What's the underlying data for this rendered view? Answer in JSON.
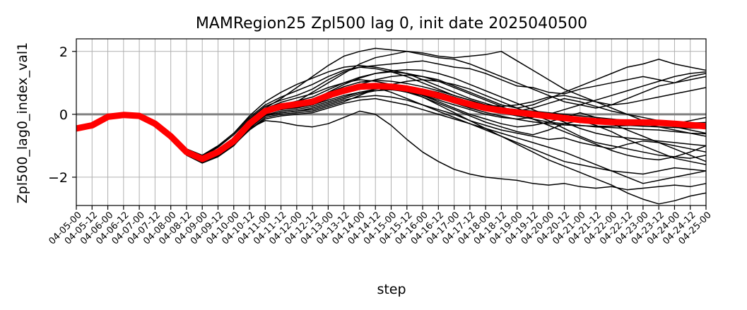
{
  "chart_data": {
    "type": "line",
    "title": "MAMRegion25 Zpl500 lag 0, init date 2025040500",
    "xlabel": "step",
    "ylabel": "Zpl500_lag0_index_val1",
    "ylim": [
      -2.9,
      2.4
    ],
    "yticks": [
      -2,
      0,
      2
    ],
    "yticklabels": [
      "−2",
      "0",
      "2"
    ],
    "grid": true,
    "x": [
      "04-05-00",
      "04-05-12",
      "04-06-00",
      "04-06-12",
      "04-07-00",
      "04-07-12",
      "04-08-00",
      "04-08-12",
      "04-09-00",
      "04-09-12",
      "04-10-00",
      "04-10-12",
      "04-11-00",
      "04-11-12",
      "04-12-00",
      "04-12-12",
      "04-13-00",
      "04-13-12",
      "04-14-00",
      "04-14-12",
      "04-15-00",
      "04-15-12",
      "04-16-00",
      "04-16-12",
      "04-17-00",
      "04-17-12",
      "04-18-00",
      "04-18-12",
      "04-19-00",
      "04-19-12",
      "04-20-00",
      "04-20-12",
      "04-21-00",
      "04-21-12",
      "04-22-00",
      "04-22-12",
      "04-23-00",
      "04-23-12",
      "04-24-00",
      "04-24-12",
      "04-25-00"
    ],
    "reference_line": {
      "y": 0,
      "color": "#808080"
    },
    "ensemble_color": "#000000",
    "mean_color": "#ff0000",
    "mean": [
      -0.45,
      -0.35,
      -0.08,
      -0.02,
      -0.05,
      -0.3,
      -0.7,
      -1.2,
      -1.42,
      -1.2,
      -0.85,
      -0.3,
      0.1,
      0.25,
      0.32,
      0.4,
      0.6,
      0.75,
      0.88,
      0.9,
      0.88,
      0.82,
      0.72,
      0.6,
      0.45,
      0.32,
      0.2,
      0.12,
      0.06,
      0.0,
      -0.06,
      -0.12,
      -0.18,
      -0.22,
      -0.25,
      -0.26,
      -0.26,
      -0.27,
      -0.3,
      -0.34,
      -0.38
    ],
    "members": [
      [
        -0.38,
        -0.3,
        -0.05,
        0.02,
        0.0,
        -0.25,
        -0.65,
        -1.15,
        -1.35,
        -1.05,
        -0.65,
        -0.15,
        0.25,
        0.45,
        0.6,
        0.8,
        1.1,
        1.35,
        1.5,
        1.55,
        1.6,
        1.65,
        1.7,
        1.6,
        1.5,
        1.45,
        1.3,
        1.1,
        0.9,
        0.85,
        0.7,
        0.65,
        0.8,
        0.9,
        1.0,
        1.1,
        1.2,
        1.1,
        1.0,
        1.1,
        1.2
      ],
      [
        -0.45,
        -0.35,
        -0.1,
        -0.05,
        -0.08,
        -0.35,
        -0.75,
        -1.3,
        -1.55,
        -1.35,
        -1.0,
        -0.45,
        -0.05,
        0.05,
        0.1,
        0.15,
        0.3,
        0.45,
        0.55,
        0.6,
        0.55,
        0.45,
        0.3,
        0.15,
        0.0,
        -0.2,
        -0.35,
        -0.5,
        -0.6,
        -0.7,
        -0.8,
        -0.75,
        -0.9,
        -1.0,
        -1.1,
        -0.95,
        -0.85,
        -0.9,
        -1.0,
        -1.1,
        -1.2
      ],
      [
        -0.5,
        -0.4,
        -0.12,
        -0.05,
        -0.05,
        -0.3,
        -0.7,
        -1.25,
        -1.5,
        -1.3,
        -0.95,
        -0.4,
        0.0,
        0.2,
        0.4,
        0.7,
        1.0,
        1.3,
        1.6,
        1.8,
        1.9,
        2.0,
        1.9,
        1.8,
        1.75,
        1.6,
        1.4,
        1.2,
        1.0,
        0.8,
        0.6,
        0.4,
        0.3,
        0.2,
        0.3,
        0.5,
        0.7,
        0.9,
        1.0,
        1.2,
        1.3
      ],
      [
        -0.42,
        -0.32,
        -0.06,
        0.0,
        -0.03,
        -0.28,
        -0.68,
        -1.18,
        -1.4,
        -1.2,
        -0.9,
        -0.45,
        -0.2,
        -0.25,
        -0.35,
        -0.4,
        -0.3,
        -0.1,
        0.1,
        0.0,
        -0.35,
        -0.8,
        -1.2,
        -1.5,
        -1.75,
        -1.9,
        -2.0,
        -2.05,
        -2.1,
        -2.2,
        -2.25,
        -2.2,
        -2.3,
        -2.35,
        -2.3,
        -2.4,
        -2.35,
        -2.3,
        -2.25,
        -2.3,
        -2.2
      ],
      [
        -0.48,
        -0.38,
        -0.1,
        -0.03,
        -0.06,
        -0.32,
        -0.72,
        -1.22,
        -1.45,
        -1.25,
        -0.85,
        -0.25,
        0.2,
        0.5,
        0.85,
        1.2,
        1.55,
        1.85,
        2.0,
        2.1,
        2.05,
        2.0,
        1.95,
        1.85,
        1.8,
        1.85,
        1.9,
        2.0,
        1.7,
        1.4,
        1.1,
        0.8,
        0.6,
        0.4,
        0.2,
        0.0,
        -0.2,
        -0.3,
        -0.4,
        -0.5,
        -0.6
      ],
      [
        -0.4,
        -0.33,
        -0.07,
        0.0,
        -0.02,
        -0.27,
        -0.66,
        -1.16,
        -1.38,
        -1.12,
        -0.75,
        -0.2,
        0.15,
        0.3,
        0.35,
        0.4,
        0.55,
        0.7,
        0.8,
        0.85,
        0.7,
        0.5,
        0.3,
        0.1,
        -0.1,
        -0.3,
        -0.5,
        -0.7,
        -0.9,
        -1.1,
        -1.3,
        -1.5,
        -1.6,
        -1.7,
        -1.8,
        -1.85,
        -1.9,
        -1.8,
        -1.7,
        -1.75,
        -1.8
      ],
      [
        -0.46,
        -0.36,
        -0.09,
        -0.02,
        -0.04,
        -0.31,
        -0.71,
        -1.21,
        -1.44,
        -1.22,
        -0.88,
        -0.35,
        0.05,
        0.15,
        0.2,
        0.3,
        0.5,
        0.7,
        0.95,
        1.1,
        1.2,
        1.25,
        1.2,
        1.1,
        0.9,
        0.7,
        0.5,
        0.3,
        0.2,
        0.3,
        0.5,
        0.7,
        0.9,
        1.1,
        1.3,
        1.5,
        1.6,
        1.75,
        1.6,
        1.5,
        1.4
      ],
      [
        -0.44,
        -0.34,
        -0.08,
        -0.01,
        -0.05,
        -0.29,
        -0.69,
        -1.19,
        -1.41,
        -1.18,
        -0.82,
        -0.28,
        0.1,
        0.22,
        0.28,
        0.3,
        0.45,
        0.6,
        0.7,
        0.75,
        0.8,
        0.7,
        0.55,
        0.35,
        0.15,
        -0.05,
        -0.25,
        -0.4,
        -0.55,
        -0.65,
        -0.5,
        -0.3,
        -0.2,
        -0.35,
        -0.55,
        -0.8,
        -1.0,
        -1.2,
        -1.4,
        -1.5,
        -1.6
      ],
      [
        -0.47,
        -0.37,
        -0.09,
        -0.03,
        -0.06,
        -0.33,
        -0.73,
        -1.23,
        -1.46,
        -1.28,
        -0.95,
        -0.5,
        -0.1,
        0.0,
        0.05,
        0.1,
        0.25,
        0.4,
        0.6,
        0.8,
        0.95,
        1.05,
        1.1,
        1.05,
        0.95,
        0.8,
        0.6,
        0.4,
        0.2,
        0.0,
        -0.2,
        -0.45,
        -0.7,
        -0.9,
        -1.0,
        -1.1,
        -1.2,
        -1.3,
        -1.35,
        -1.4,
        -1.3
      ],
      [
        -0.43,
        -0.34,
        -0.07,
        0.01,
        -0.01,
        -0.26,
        -0.64,
        -1.12,
        -1.32,
        -1.02,
        -0.6,
        -0.05,
        0.4,
        0.7,
        0.95,
        1.15,
        1.35,
        1.5,
        1.55,
        1.5,
        1.4,
        1.3,
        1.1,
        0.9,
        0.7,
        0.5,
        0.35,
        0.2,
        0.1,
        0.2,
        0.35,
        0.5,
        0.4,
        0.25,
        0.1,
        0.0,
        -0.1,
        -0.2,
        -0.3,
        -0.2,
        -0.1
      ],
      [
        -0.49,
        -0.39,
        -0.11,
        -0.04,
        -0.07,
        -0.34,
        -0.74,
        -1.26,
        -1.52,
        -1.32,
        -0.98,
        -0.5,
        -0.15,
        -0.05,
        0.0,
        0.05,
        0.2,
        0.35,
        0.45,
        0.5,
        0.4,
        0.3,
        0.15,
        0.0,
        -0.15,
        -0.3,
        -0.45,
        -0.6,
        -0.75,
        -0.9,
        -1.05,
        -1.2,
        -1.4,
        -1.6,
        -1.8,
        -2.0,
        -2.2,
        -2.1,
        -2.0,
        -1.9,
        -1.8
      ],
      [
        -0.41,
        -0.31,
        -0.06,
        0.02,
        0.01,
        -0.24,
        -0.62,
        -1.1,
        -1.3,
        -1.0,
        -0.6,
        -0.1,
        0.3,
        0.55,
        0.75,
        0.95,
        1.2,
        1.4,
        1.5,
        1.45,
        1.35,
        1.2,
        1.0,
        0.8,
        0.6,
        0.45,
        0.3,
        0.25,
        0.3,
        0.4,
        0.55,
        0.6,
        0.5,
        0.4,
        0.3,
        0.35,
        0.45,
        0.55,
        0.65,
        0.75,
        0.85
      ],
      [
        -0.45,
        -0.36,
        -0.1,
        -0.02,
        -0.04,
        -0.3,
        -0.7,
        -1.2,
        -1.42,
        -1.2,
        -0.86,
        -0.32,
        0.08,
        0.25,
        0.35,
        0.45,
        0.65,
        0.8,
        0.9,
        0.95,
        0.9,
        0.75,
        0.55,
        0.3,
        0.05,
        -0.2,
        -0.45,
        -0.7,
        -0.95,
        -1.2,
        -1.45,
        -1.65,
        -1.85,
        -2.05,
        -2.25,
        -2.5,
        -2.7,
        -2.85,
        -2.75,
        -2.6,
        -2.5
      ],
      [
        -0.44,
        -0.35,
        -0.08,
        -0.01,
        -0.04,
        -0.3,
        -0.7,
        -1.2,
        -1.43,
        -1.22,
        -0.88,
        -0.35,
        0.05,
        0.2,
        0.3,
        0.45,
        0.7,
        0.95,
        1.15,
        1.3,
        1.35,
        1.3,
        1.2,
        1.05,
        0.85,
        0.65,
        0.45,
        0.25,
        0.05,
        -0.15,
        -0.35,
        -0.55,
        -0.75,
        -0.95,
        -1.15,
        -1.3,
        -1.4,
        -1.45,
        -1.35,
        -1.2,
        -1.0
      ],
      [
        -0.46,
        -0.36,
        -0.09,
        -0.02,
        -0.05,
        -0.31,
        -0.71,
        -1.22,
        -1.45,
        -1.24,
        -0.9,
        -0.38,
        0.02,
        0.15,
        0.22,
        0.3,
        0.5,
        0.7,
        0.85,
        0.9,
        0.85,
        0.75,
        0.6,
        0.45,
        0.3,
        0.15,
        0.0,
        -0.1,
        -0.15,
        -0.1,
        0.0,
        0.15,
        0.3,
        0.45,
        0.6,
        0.75,
        0.9,
        1.05,
        1.2,
        1.3,
        1.35
      ],
      [
        -0.43,
        -0.33,
        -0.07,
        0.0,
        -0.02,
        -0.27,
        -0.67,
        -1.17,
        -1.39,
        -1.15,
        -0.78,
        -0.22,
        0.18,
        0.38,
        0.52,
        0.65,
        0.85,
        1.0,
        1.1,
        1.05,
        0.95,
        0.8,
        0.6,
        0.4,
        0.2,
        0.0,
        -0.15,
        -0.3,
        -0.4,
        -0.35,
        -0.25,
        -0.1,
        0.05,
        -0.1,
        -0.3,
        -0.5,
        -0.7,
        -0.9,
        -1.1,
        -1.3,
        -1.5
      ],
      [
        -0.48,
        -0.38,
        -0.1,
        -0.03,
        -0.06,
        -0.32,
        -0.72,
        -1.24,
        -1.48,
        -1.28,
        -0.94,
        -0.42,
        -0.02,
        0.1,
        0.15,
        0.25,
        0.4,
        0.55,
        0.7,
        0.8,
        0.85,
        0.85,
        0.8,
        0.7,
        0.55,
        0.4,
        0.3,
        0.2,
        0.15,
        0.1,
        0.05,
        0.0,
        -0.05,
        -0.1,
        -0.15,
        -0.2,
        -0.3,
        -0.4,
        -0.5,
        -0.6,
        -0.7
      ],
      [
        -0.42,
        -0.33,
        -0.06,
        0.01,
        -0.02,
        -0.28,
        -0.68,
        -1.18,
        -1.4,
        -1.18,
        -0.82,
        -0.28,
        0.12,
        0.3,
        0.42,
        0.55,
        0.78,
        1.0,
        1.18,
        1.3,
        1.38,
        1.42,
        1.4,
        1.3,
        1.15,
        0.95,
        0.75,
        0.55,
        0.35,
        0.15,
        -0.05,
        -0.25,
        -0.45,
        -0.6,
        -0.7,
        -0.75,
        -0.8,
        -0.85,
        -0.9,
        -0.95,
        -1.0
      ],
      [
        -0.47,
        -0.37,
        -0.09,
        -0.03,
        -0.05,
        -0.31,
        -0.72,
        -1.23,
        -1.47,
        -1.26,
        -0.92,
        -0.4,
        -0.05,
        0.05,
        0.1,
        0.2,
        0.35,
        0.5,
        0.65,
        0.75,
        0.78,
        0.72,
        0.62,
        0.5,
        0.38,
        0.25,
        0.15,
        0.05,
        -0.05,
        -0.15,
        -0.25,
        -0.3,
        -0.35,
        -0.4,
        -0.42,
        -0.45,
        -0.48,
        -0.5,
        -0.55,
        -0.6,
        -0.62
      ],
      [
        -0.44,
        -0.34,
        -0.08,
        -0.01,
        -0.03,
        -0.29,
        -0.69,
        -1.19,
        -1.41,
        -1.19,
        -0.84,
        -0.3,
        0.1,
        0.28,
        0.38,
        0.48,
        0.68,
        0.88,
        1.02,
        1.08,
        1.05,
        0.98,
        0.88,
        0.75,
        0.6,
        0.45,
        0.3,
        0.18,
        0.08,
        0.0,
        -0.08,
        -0.15,
        -0.22,
        -0.28,
        -0.32,
        -0.35,
        -0.38,
        -0.4,
        -0.42,
        -0.44,
        -0.45
      ],
      [
        -0.45,
        -0.35,
        -0.09,
        -0.02,
        -0.04,
        -0.3,
        -0.7,
        -1.21,
        -1.44,
        -1.23,
        -0.89,
        -0.36,
        0.04,
        0.2,
        0.28,
        0.38,
        0.58,
        0.78,
        0.92,
        0.96,
        0.92,
        0.82,
        0.68,
        0.52,
        0.36,
        0.2,
        0.06,
        -0.06,
        -0.16,
        -0.24,
        -0.3,
        -0.34,
        -0.36,
        -0.38,
        -0.38,
        -0.36,
        -0.34,
        -0.32,
        -0.3,
        -0.28,
        -0.26
      ]
    ]
  }
}
